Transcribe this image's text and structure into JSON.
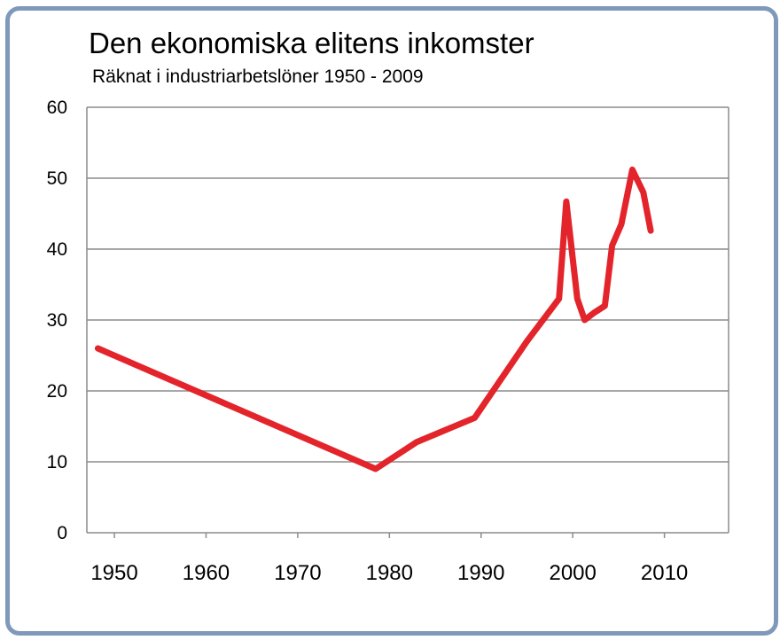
{
  "chart_data": {
    "type": "line",
    "title": "Den ekonomiska elitens inkomster",
    "subtitle": "Räknat i industriarbetslöner 1950 - 2009",
    "xlabel": "",
    "ylabel": "",
    "xlim": [
      1947,
      2017
    ],
    "ylim": [
      0,
      60
    ],
    "x_ticks": [
      1950,
      1960,
      1970,
      1980,
      1990,
      2000,
      2010
    ],
    "x_tick_labels": [
      "1950",
      "1960",
      "1970",
      "1980",
      "1990",
      "2000",
      "2010"
    ],
    "y_ticks": [
      0,
      10,
      20,
      30,
      40,
      50,
      60
    ],
    "y_tick_labels": [
      "0",
      "10",
      "20",
      "30",
      "40",
      "50",
      "60"
    ],
    "grid": true,
    "legend": "none",
    "series": [
      {
        "color": "#e3242b",
        "x": [
          1948.2,
          1978.5,
          1983.0,
          1989.3,
          1995.0,
          1998.5,
          1999.3,
          2000.5,
          2001.3,
          2002.3,
          2003.5,
          2004.3,
          2005.3,
          2006.5,
          2007.7,
          2008.5
        ],
        "y": [
          26.0,
          9.0,
          12.8,
          16.2,
          27.0,
          33.0,
          46.7,
          33.0,
          30.0,
          31.0,
          32.0,
          40.5,
          43.5,
          51.2,
          48.0,
          42.6
        ]
      }
    ]
  }
}
